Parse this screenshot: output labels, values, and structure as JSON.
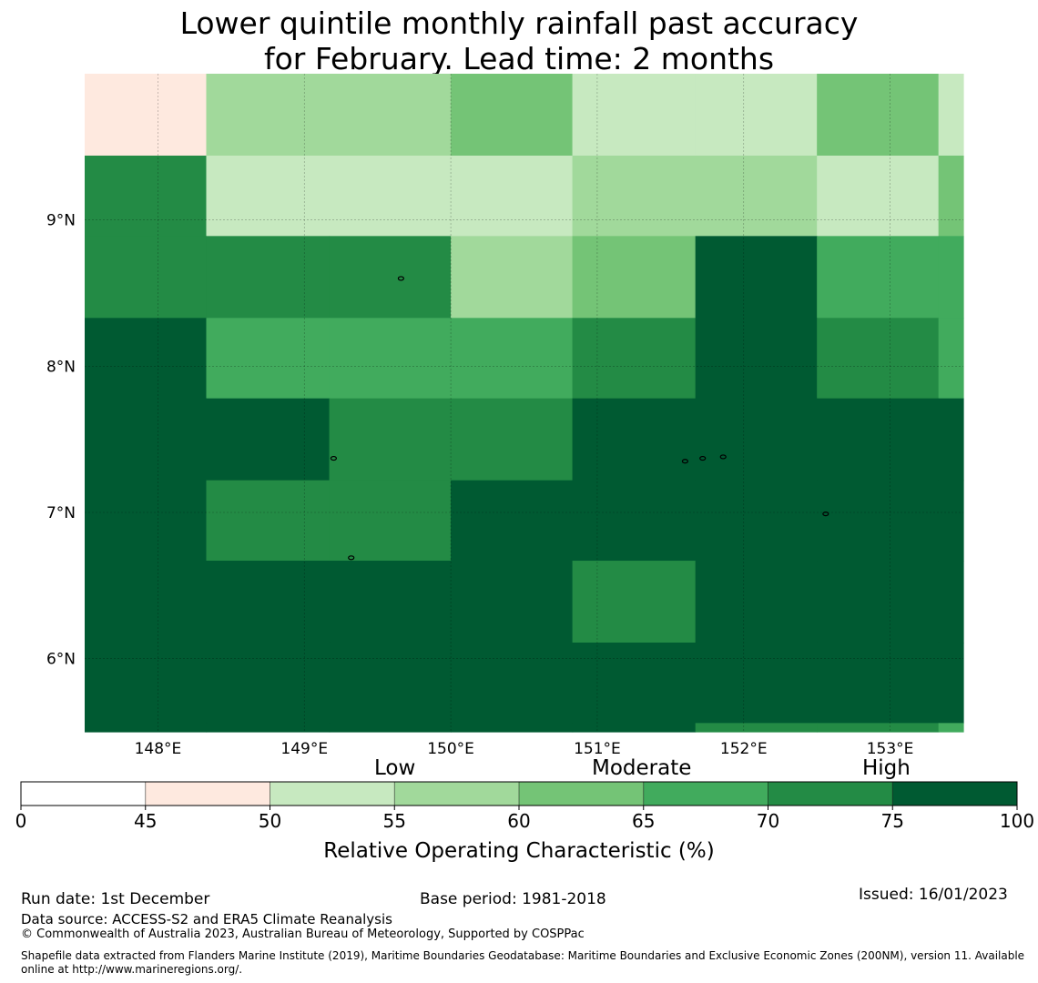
{
  "title_line1": "Lower quintile monthly rainfall past accuracy",
  "title_line2": "for February. Lead time: 2 months",
  "chart_data": {
    "type": "heatmap",
    "x_range_deg_e": [
      147.5,
      153.5
    ],
    "y_range_deg_n": [
      5.5,
      10.0
    ],
    "x_ticks": [
      {
        "value": 148,
        "label": "148°E"
      },
      {
        "value": 149,
        "label": "149°E"
      },
      {
        "value": 150,
        "label": "150°E"
      },
      {
        "value": 151,
        "label": "151°E"
      },
      {
        "value": 152,
        "label": "152°E"
      },
      {
        "value": 153,
        "label": "153°E"
      }
    ],
    "y_ticks": [
      {
        "value": 9,
        "label": "9°N"
      },
      {
        "value": 8,
        "label": "8°N"
      },
      {
        "value": 7,
        "label": "7°N"
      },
      {
        "value": 6,
        "label": "6°N"
      }
    ],
    "grid_cols_lon": [
      [
        147.5,
        148.33
      ],
      [
        148.33,
        149.17
      ],
      [
        149.17,
        150.0
      ],
      [
        150.0,
        150.83
      ],
      [
        150.83,
        151.67
      ],
      [
        151.67,
        152.5
      ],
      [
        152.5,
        153.33
      ],
      [
        153.33,
        153.5
      ]
    ],
    "grid_rows_lat": [
      [
        9.44,
        10.0
      ],
      [
        8.89,
        9.44
      ],
      [
        8.33,
        8.89
      ],
      [
        7.78,
        8.33
      ],
      [
        7.22,
        7.78
      ],
      [
        6.67,
        7.22
      ],
      [
        6.11,
        6.67
      ],
      [
        5.56,
        6.11
      ],
      [
        5.5,
        5.56
      ]
    ],
    "class_grid": [
      [
        1,
        3,
        3,
        4,
        2,
        2,
        4,
        2
      ],
      [
        6,
        2,
        2,
        2,
        3,
        3,
        2,
        4
      ],
      [
        6,
        6,
        6,
        3,
        4,
        7,
        5,
        5
      ],
      [
        7,
        5,
        5,
        5,
        6,
        7,
        6,
        5
      ],
      [
        7,
        7,
        6,
        6,
        7,
        7,
        7,
        7
      ],
      [
        7,
        6,
        6,
        7,
        7,
        7,
        7,
        7
      ],
      [
        7,
        7,
        7,
        7,
        6,
        7,
        7,
        7
      ],
      [
        7,
        7,
        7,
        7,
        7,
        7,
        7,
        7
      ],
      [
        7,
        7,
        7,
        7,
        7,
        6,
        6,
        5
      ]
    ],
    "islands": [
      {
        "lon": 149.66,
        "lat": 8.6
      },
      {
        "lon": 149.2,
        "lat": 7.37
      },
      {
        "lon": 149.32,
        "lat": 6.69
      },
      {
        "lon": 151.6,
        "lat": 7.35
      },
      {
        "lon": 151.72,
        "lat": 7.37
      },
      {
        "lon": 151.86,
        "lat": 7.38
      },
      {
        "lon": 152.56,
        "lat": 6.99
      }
    ],
    "colorbar": {
      "boundaries": [
        0,
        45,
        50,
        55,
        60,
        65,
        70,
        75,
        100
      ],
      "tick_labels": [
        "0",
        "45",
        "50",
        "55",
        "60",
        "65",
        "70",
        "75",
        "100"
      ],
      "colors": [
        "#ffffff",
        "#fee9df",
        "#c7e9c0",
        "#a1d99b",
        "#74c476",
        "#41ab5d",
        "#238b45",
        "#005a32"
      ],
      "label": "Relative Operating Characteristic (%)"
    },
    "categories": [
      "Low",
      "Moderate",
      "High"
    ]
  },
  "footer": {
    "run_date": "Run date: 1st December",
    "base_period": "Base period: 1981-2018",
    "issued": "Issued: 16/01/2023",
    "data_source": "Data source: ACCESS-S2 and ERA5 Climate Reanalysis",
    "copyright": "© Commonwealth of Australia 2023, Australian Bureau of Meteorology, Supported by COSPPac",
    "shapefile_line1": "Shapefile data extracted from Flanders Marine Institute (2019), Maritime Boundaries Geodatabase: Maritime Boundaries and Exclusive Economic Zones (200NM), version 11. Available",
    "shapefile_line2": "online at http://www.marineregions.org/."
  }
}
